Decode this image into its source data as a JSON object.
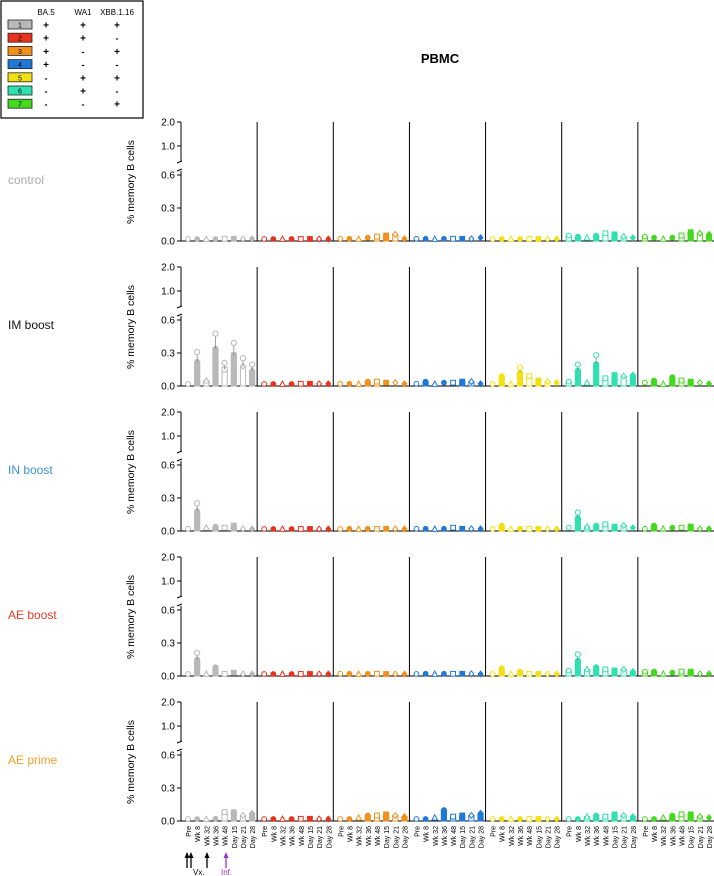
{
  "chart_data": {
    "type": "box",
    "title": "PBMC",
    "ylabel": "% memory B cells",
    "y_ticks_lower": [
      "0.0",
      "0.3",
      "0.6"
    ],
    "y_ticks_upper": [
      "1.0",
      "2.0"
    ],
    "y_axis_break": true,
    "ylim_lower": [
      0,
      0.6
    ],
    "ylim_upper": [
      0.6,
      2.0
    ],
    "timepoints": [
      "Pre",
      "Wk 8",
      "Wk 32",
      "Wk 36",
      "Wk 48",
      "Day 15",
      "Day 21",
      "Day 28"
    ],
    "legend": {
      "headers": [
        "BA.5",
        "WA1",
        "XBB.1.16"
      ],
      "rows": [
        {
          "id": "1",
          "color": "#b8b8b8",
          "marks": [
            "+",
            "+",
            "+"
          ]
        },
        {
          "id": "2",
          "color": "#e8321e",
          "marks": [
            "+",
            "+",
            "-"
          ]
        },
        {
          "id": "3",
          "color": "#f0901e",
          "marks": [
            "+",
            "-",
            "+"
          ]
        },
        {
          "id": "4",
          "color": "#2078d4",
          "marks": [
            "+",
            "-",
            "-"
          ]
        },
        {
          "id": "5",
          "color": "#f2e012",
          "marks": [
            "-",
            "+",
            "+"
          ]
        },
        {
          "id": "6",
          "color": "#30e0b0",
          "marks": [
            "-",
            "+",
            "-"
          ]
        },
        {
          "id": "7",
          "color": "#44d81e",
          "marks": [
            "-",
            "-",
            "+"
          ]
        }
      ]
    },
    "annotations": {
      "arrows_label_vx": "Vx.",
      "arrows_label_inf": "Inf.",
      "inf_color": "#9b30c8"
    },
    "groups": [
      {
        "name": "control",
        "color": "#aaaaaa",
        "series": [
          [
            0.01,
            0.01,
            0.005,
            0.01,
            0.02,
            0.02,
            0.02,
            0.02
          ],
          [
            0.01,
            0.01,
            0.005,
            0.01,
            0.01,
            0.01,
            0.01,
            0
          ],
          [
            0.02,
            0.02,
            0.01,
            0.03,
            0.04,
            0.05,
            0.06,
            0.02
          ],
          [
            0.02,
            0.02,
            0.01,
            0.02,
            0.02,
            0.02,
            0.02,
            0.03
          ],
          [
            0.005,
            0.005,
            0.005,
            0.005,
            0.005,
            0.005,
            0.005,
            0.005
          ],
          [
            0.05,
            0.04,
            0.03,
            0.05,
            0.07,
            0.06,
            0.04,
            0.03
          ],
          [
            0.04,
            0.03,
            0.02,
            0.03,
            0.05,
            0.08,
            0.07,
            0.06
          ]
        ]
      },
      {
        "name": "IM boost",
        "color": "#111111",
        "series": [
          [
            0.01,
            0.22,
            0.05,
            0.34,
            0.15,
            0.28,
            0.18,
            0.14
          ],
          [
            0.01,
            0.01,
            0.01,
            0.01,
            0.02,
            0.02,
            0.02,
            0.02
          ],
          [
            0.02,
            0.02,
            0.01,
            0.04,
            0.04,
            0.03,
            0.03,
            0.02
          ],
          [
            0.02,
            0.04,
            0.01,
            0.03,
            0.03,
            0.04,
            0.04,
            0.02
          ],
          [
            0.01,
            0.09,
            0.01,
            0.12,
            0.09,
            0.05,
            0.04,
            0.03
          ],
          [
            0.04,
            0.14,
            0.03,
            0.2,
            0.07,
            0.1,
            0.09,
            0.1
          ],
          [
            0.03,
            0.05,
            0.01,
            0.08,
            0.05,
            0.04,
            0.03,
            0.02
          ]
        ]
      },
      {
        "name": "IN boost",
        "color": "#3a93d0",
        "series": [
          [
            0.02,
            0.18,
            0.03,
            0.04,
            0.03,
            0.05,
            0.02,
            0.01
          ],
          [
            0.005,
            0.005,
            0.005,
            0.01,
            0.01,
            0.01,
            0.005,
            0.005
          ],
          [
            0.01,
            0.02,
            0.01,
            0.02,
            0.02,
            0.02,
            0.01,
            0.01
          ],
          [
            0.02,
            0.02,
            0.01,
            0.02,
            0.03,
            0.02,
            0.02,
            0.02
          ],
          [
            0.005,
            0.05,
            0.005,
            0.02,
            0.01,
            0.01,
            0.005,
            0.005
          ],
          [
            0.03,
            0.12,
            0.04,
            0.05,
            0.06,
            0.04,
            0.05,
            0.03
          ],
          [
            0.02,
            0.05,
            0.02,
            0.03,
            0.03,
            0.04,
            0.02,
            0.02
          ]
        ]
      },
      {
        "name": "AE boost",
        "color": "#e03a2a",
        "series": [
          [
            0.005,
            0.15,
            0.01,
            0.08,
            0.01,
            0.03,
            0.01,
            0.005
          ],
          [
            0.005,
            0.005,
            0.005,
            0.005,
            0.005,
            0.005,
            0.005,
            0.005
          ],
          [
            0.02,
            0.02,
            0.01,
            0.02,
            0.02,
            0.01,
            0.01,
            0.01
          ],
          [
            0.01,
            0.02,
            0.01,
            0.02,
            0.02,
            0.02,
            0.02,
            0.01
          ],
          [
            0.005,
            0.07,
            0.005,
            0.04,
            0.02,
            0.01,
            0.005,
            0.005
          ],
          [
            0.05,
            0.14,
            0.06,
            0.08,
            0.06,
            0.05,
            0.06,
            0.04
          ],
          [
            0.04,
            0.04,
            0.02,
            0.03,
            0.04,
            0.04,
            0.02,
            0.02
          ]
        ]
      },
      {
        "name": "AE prime",
        "color": "#f0a030",
        "series": [
          [
            0.005,
            0.005,
            0.005,
            0.02,
            0.08,
            0.08,
            0.05,
            0.07
          ],
          [
            0.005,
            0.005,
            0.005,
            0.01,
            0.02,
            0.02,
            0.01,
            0.005
          ],
          [
            0.005,
            0.005,
            0.03,
            0.05,
            0.05,
            0.06,
            0.05,
            0.04
          ],
          [
            0.005,
            0.005,
            0.03,
            0.1,
            0.04,
            0.05,
            0.05,
            0.07
          ],
          [
            0.005,
            0.005,
            0.01,
            0.01,
            0.01,
            0.01,
            0.01,
            0.01
          ],
          [
            0.005,
            0.005,
            0.04,
            0.05,
            0.04,
            0.06,
            0.05,
            0.04
          ],
          [
            0.005,
            0.005,
            0.03,
            0.05,
            0.06,
            0.06,
            0.04,
            0.03
          ]
        ]
      }
    ]
  }
}
